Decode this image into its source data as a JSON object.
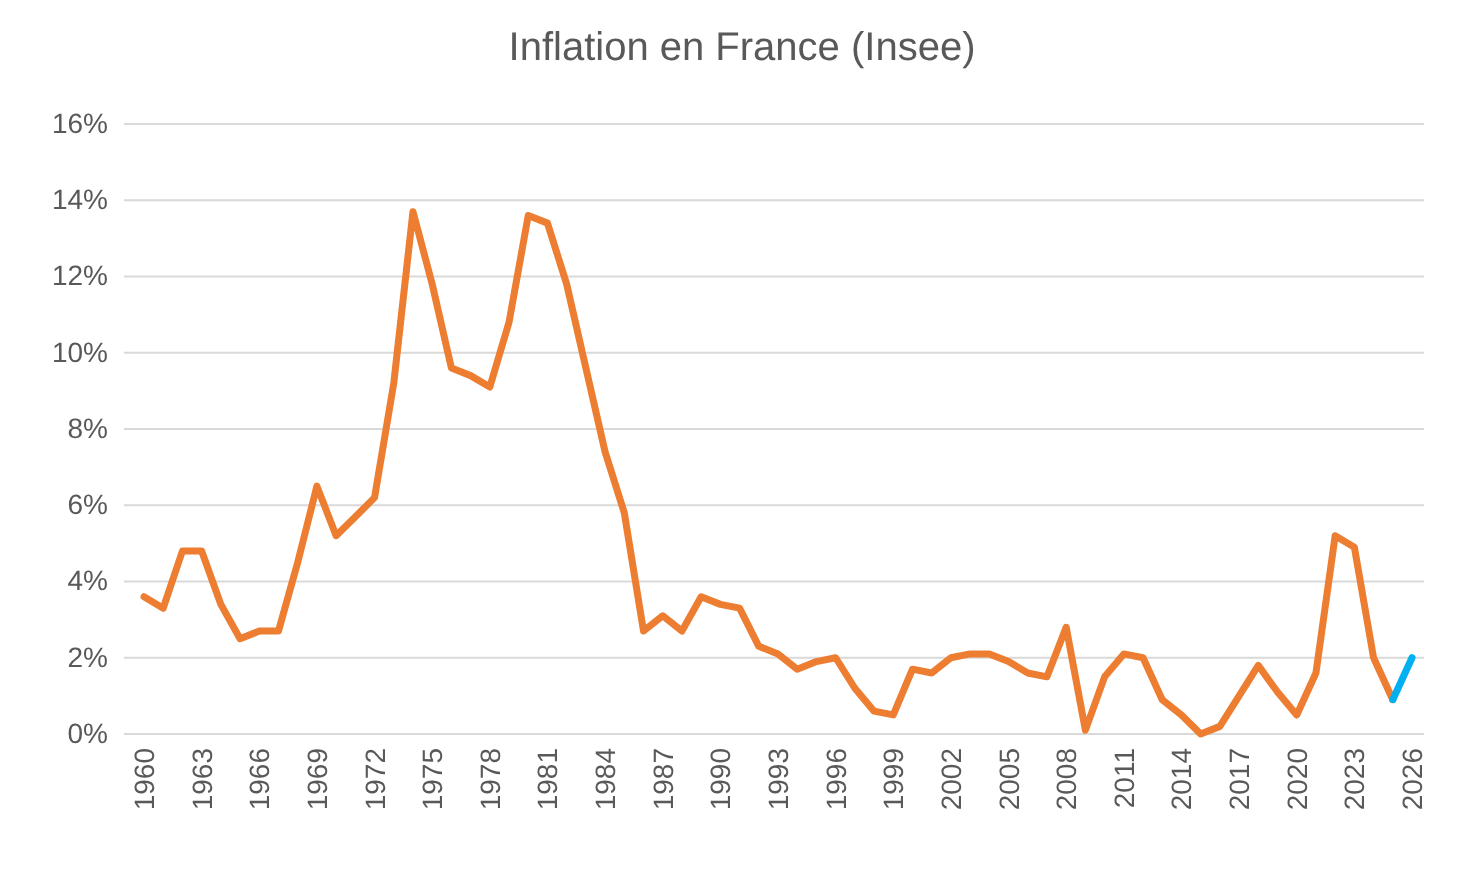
{
  "chart_data": {
    "type": "line",
    "title": "Inflation en France (Insee)",
    "categories": [
      "1960",
      null,
      null,
      "1963",
      null,
      null,
      "1966",
      null,
      null,
      "1969",
      null,
      null,
      "1972",
      null,
      null,
      "1975",
      null,
      null,
      "1978",
      null,
      null,
      "1981",
      null,
      null,
      "1984",
      null,
      null,
      "1987",
      null,
      null,
      "1990",
      null,
      null,
      "1993",
      null,
      null,
      "1996",
      null,
      null,
      "1999",
      null,
      null,
      "2002",
      null,
      null,
      "2005",
      null,
      null,
      "2008",
      null,
      null,
      "2011",
      null,
      null,
      "2014",
      null,
      null,
      "2017",
      null,
      null,
      "2020",
      null,
      null,
      "2023",
      null,
      null,
      "2026"
    ],
    "series": [
      {
        "color": "#ed7d31",
        "values": [
          3.6,
          3.3,
          4.8,
          4.8,
          3.4,
          2.5,
          2.7,
          2.7,
          4.5,
          6.5,
          5.2,
          5.7,
          6.2,
          9.2,
          13.7,
          11.8,
          9.6,
          9.4,
          9.1,
          10.8,
          13.6,
          13.4,
          11.8,
          9.6,
          7.4,
          5.8,
          2.7,
          3.1,
          2.7,
          3.6,
          3.4,
          3.3,
          2.3,
          2.1,
          1.7,
          1.9,
          2.0,
          1.2,
          0.6,
          0.5,
          1.7,
          1.6,
          2.0,
          2.1,
          2.1,
          1.9,
          1.6,
          1.5,
          2.8,
          0.1,
          1.5,
          2.1,
          2.0,
          0.9,
          0.5,
          0.0,
          0.2,
          1.0,
          1.8,
          1.1,
          0.5,
          1.6,
          5.2,
          4.9,
          2.0,
          0.9,
          null
        ]
      },
      {
        "color": "#00b0f0",
        "values": [
          null,
          null,
          null,
          null,
          null,
          null,
          null,
          null,
          null,
          null,
          null,
          null,
          null,
          null,
          null,
          null,
          null,
          null,
          null,
          null,
          null,
          null,
          null,
          null,
          null,
          null,
          null,
          null,
          null,
          null,
          null,
          null,
          null,
          null,
          null,
          null,
          null,
          null,
          null,
          null,
          null,
          null,
          null,
          null,
          null,
          null,
          null,
          null,
          null,
          null,
          null,
          null,
          null,
          null,
          null,
          null,
          null,
          null,
          null,
          null,
          null,
          null,
          null,
          null,
          null,
          0.9,
          2.0
        ]
      }
    ],
    "ylim": [
      0,
      16
    ],
    "yticks": [
      {
        "value": 0,
        "label": "0%"
      },
      {
        "value": 2,
        "label": "2%"
      },
      {
        "value": 4,
        "label": "4%"
      },
      {
        "value": 6,
        "label": "6%"
      },
      {
        "value": 8,
        "label": "8%"
      },
      {
        "value": 10,
        "label": "10%"
      },
      {
        "value": 12,
        "label": "12%"
      },
      {
        "value": 14,
        "label": "14%"
      },
      {
        "value": 16,
        "label": "16%"
      }
    ],
    "grid": "y",
    "marker": "none",
    "line_style": "solid"
  }
}
